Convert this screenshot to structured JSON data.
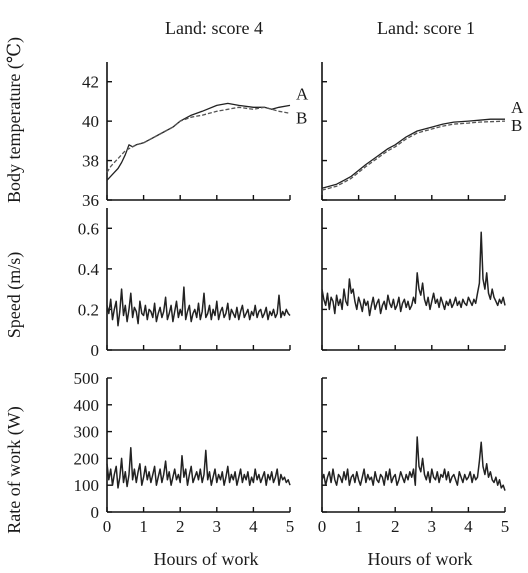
{
  "chart_data": [
    {
      "type": "line",
      "title": "Land: score 4",
      "xlabel": "",
      "ylabel": "Body temperature (℃)",
      "xlim": [
        0,
        5
      ],
      "ylim": [
        36,
        43
      ],
      "yticks": [
        "36",
        "38",
        "40",
        "42"
      ],
      "series": [
        {
          "name": "A",
          "x": [
            0,
            0.1,
            0.2,
            0.3,
            0.4,
            0.5,
            0.6,
            0.7,
            0.8,
            1,
            1.2,
            1.5,
            1.8,
            2,
            2.3,
            2.6,
            3,
            3.3,
            3.6,
            4,
            4.3,
            4.5,
            4.7,
            5
          ],
          "values": [
            37,
            37.2,
            37.4,
            37.6,
            37.9,
            38.3,
            38.8,
            38.7,
            38.8,
            38.9,
            39.1,
            39.4,
            39.7,
            40,
            40.3,
            40.5,
            40.8,
            40.9,
            40.8,
            40.7,
            40.7,
            40.6,
            40.7,
            40.8
          ]
        },
        {
          "name": "B",
          "x": [
            0,
            0.1,
            0.2,
            0.3,
            0.4,
            0.5,
            0.6,
            0.7,
            0.8,
            1,
            1.2,
            1.5,
            1.8,
            2,
            2.3,
            2.6,
            3,
            3.3,
            3.6,
            4,
            4.3,
            4.5,
            4.7,
            5
          ],
          "values": [
            37.4,
            37.7,
            37.9,
            38.1,
            38.3,
            38.5,
            38.6,
            38.7,
            38.8,
            38.9,
            39.1,
            39.4,
            39.7,
            40,
            40.2,
            40.3,
            40.5,
            40.6,
            40.7,
            40.6,
            40.7,
            40.6,
            40.5,
            40.4
          ]
        }
      ]
    },
    {
      "type": "line",
      "title": "Land: score 1",
      "xlabel": "",
      "ylabel": "",
      "xlim": [
        0,
        5
      ],
      "ylim": [
        36,
        43
      ],
      "series": [
        {
          "name": "A",
          "x": [
            0,
            0.2,
            0.4,
            0.6,
            0.8,
            1,
            1.2,
            1.5,
            1.8,
            2,
            2.3,
            2.6,
            3,
            3.3,
            3.6,
            4,
            4.3,
            4.6,
            5
          ],
          "values": [
            36.6,
            36.7,
            36.8,
            37,
            37.2,
            37.5,
            37.8,
            38.2,
            38.6,
            38.8,
            39.2,
            39.5,
            39.7,
            39.85,
            39.95,
            40,
            40.05,
            40.1,
            40.1
          ]
        },
        {
          "name": "B",
          "x": [
            0,
            0.2,
            0.4,
            0.6,
            0.8,
            1,
            1.2,
            1.5,
            1.8,
            2,
            2.3,
            2.6,
            3,
            3.3,
            3.6,
            4,
            4.3,
            4.6,
            5
          ],
          "values": [
            36.5,
            36.6,
            36.7,
            36.9,
            37.1,
            37.4,
            37.7,
            38.1,
            38.5,
            38.7,
            39.1,
            39.4,
            39.6,
            39.75,
            39.85,
            39.9,
            39.95,
            39.97,
            40
          ]
        }
      ]
    },
    {
      "type": "line",
      "xlabel": "",
      "ylabel": "Speed (m/s)",
      "xlim": [
        0,
        5
      ],
      "ylim": [
        0,
        0.7
      ],
      "yticks": [
        "0",
        "0.2",
        "0.4",
        "0.6"
      ],
      "series": [
        {
          "x_start": 0,
          "x_step": 0.05,
          "values": [
            0.22,
            0.18,
            0.25,
            0.15,
            0.2,
            0.24,
            0.12,
            0.19,
            0.3,
            0.17,
            0.22,
            0.14,
            0.2,
            0.28,
            0.16,
            0.21,
            0.19,
            0.13,
            0.24,
            0.18,
            0.17,
            0.22,
            0.15,
            0.2,
            0.19,
            0.16,
            0.23,
            0.14,
            0.18,
            0.21,
            0.16,
            0.19,
            0.26,
            0.15,
            0.18,
            0.22,
            0.14,
            0.19,
            0.24,
            0.16,
            0.2,
            0.17,
            0.31,
            0.15,
            0.19,
            0.22,
            0.14,
            0.18,
            0.2,
            0.16,
            0.23,
            0.15,
            0.19,
            0.28,
            0.16,
            0.18,
            0.22,
            0.15,
            0.2,
            0.17,
            0.24,
            0.15,
            0.19,
            0.21,
            0.16,
            0.18,
            0.23,
            0.15,
            0.2,
            0.18,
            0.16,
            0.21,
            0.15,
            0.19,
            0.22,
            0.16,
            0.18,
            0.2,
            0.15,
            0.19,
            0.17,
            0.22,
            0.16,
            0.19,
            0.2,
            0.16,
            0.18,
            0.21,
            0.15,
            0.19,
            0.17,
            0.2,
            0.16,
            0.18,
            0.27,
            0.16,
            0.19,
            0.17,
            0.2,
            0.18,
            0.17
          ]
        }
      ]
    },
    {
      "type": "line",
      "xlabel": "",
      "ylabel": "",
      "xlim": [
        0,
        5
      ],
      "ylim": [
        0,
        0.7
      ],
      "series": [
        {
          "x_start": 0,
          "x_step": 0.05,
          "values": [
            0.3,
            0.25,
            0.22,
            0.28,
            0.2,
            0.26,
            0.24,
            0.18,
            0.27,
            0.22,
            0.25,
            0.2,
            0.3,
            0.24,
            0.22,
            0.35,
            0.28,
            0.3,
            0.24,
            0.2,
            0.26,
            0.23,
            0.19,
            0.25,
            0.22,
            0.24,
            0.17,
            0.22,
            0.26,
            0.2,
            0.23,
            0.25,
            0.18,
            0.22,
            0.24,
            0.2,
            0.27,
            0.23,
            0.21,
            0.25,
            0.2,
            0.22,
            0.26,
            0.19,
            0.23,
            0.25,
            0.21,
            0.24,
            0.2,
            0.22,
            0.26,
            0.23,
            0.38,
            0.3,
            0.27,
            0.33,
            0.25,
            0.22,
            0.26,
            0.2,
            0.24,
            0.28,
            0.23,
            0.25,
            0.21,
            0.26,
            0.23,
            0.2,
            0.24,
            0.22,
            0.25,
            0.21,
            0.23,
            0.26,
            0.22,
            0.24,
            0.21,
            0.25,
            0.23,
            0.22,
            0.26,
            0.24,
            0.22,
            0.25,
            0.23,
            0.28,
            0.33,
            0.58,
            0.35,
            0.3,
            0.38,
            0.28,
            0.25,
            0.3,
            0.26,
            0.24,
            0.22,
            0.25,
            0.23,
            0.26,
            0.22
          ]
        }
      ]
    },
    {
      "type": "line",
      "xlabel": "Hours of work",
      "ylabel": "Rate of work (W)",
      "xlim": [
        0,
        5
      ],
      "ylim": [
        0,
        500
      ],
      "xticks": [
        "0",
        "1",
        "2",
        "3",
        "4",
        "5"
      ],
      "yticks": [
        "0",
        "100",
        "200",
        "300",
        "400",
        "500"
      ],
      "series": [
        {
          "x_start": 0,
          "x_step": 0.05,
          "values": [
            180,
            120,
            160,
            100,
            140,
            170,
            90,
            130,
            200,
            110,
            150,
            95,
            140,
            240,
            120,
            160,
            110,
            150,
            180,
            100,
            130,
            170,
            120,
            150,
            110,
            140,
            170,
            100,
            130,
            160,
            110,
            140,
            190,
            120,
            150,
            100,
            130,
            160,
            120,
            140,
            110,
            210,
            130,
            160,
            100,
            140,
            170,
            110,
            130,
            150,
            120,
            160,
            110,
            140,
            230,
            120,
            150,
            100,
            130,
            160,
            110,
            140,
            120,
            150,
            100,
            130,
            170,
            110,
            140,
            120,
            150,
            100,
            130,
            160,
            110,
            140,
            120,
            150,
            100,
            130,
            110,
            160,
            120,
            140,
            110,
            130,
            150,
            100,
            140,
            120,
            150,
            110,
            130,
            160,
            100,
            140,
            120,
            130,
            110,
            120,
            100
          ]
        }
      ]
    },
    {
      "type": "line",
      "xlabel": "Hours of work",
      "ylabel": "",
      "xlim": [
        0,
        5
      ],
      "ylim": [
        0,
        500
      ],
      "xticks": [
        "0",
        "1",
        "2",
        "3",
        "4",
        "5"
      ],
      "series": [
        {
          "x_start": 0,
          "x_step": 0.05,
          "values": [
            120,
            140,
            100,
            130,
            150,
            110,
            160,
            120,
            100,
            140,
            130,
            110,
            150,
            120,
            160,
            100,
            130,
            140,
            110,
            150,
            120,
            100,
            130,
            160,
            110,
            140,
            120,
            130,
            100,
            150,
            120,
            110,
            140,
            130,
            100,
            150,
            120,
            160,
            110,
            130,
            140,
            100,
            120,
            150,
            130,
            110,
            140,
            120,
            150,
            130,
            160,
            100,
            280,
            170,
            150,
            200,
            140,
            120,
            150,
            110,
            160,
            130,
            120,
            150,
            110,
            140,
            130,
            160,
            120,
            150,
            110,
            130,
            140,
            120,
            100,
            150,
            130,
            110,
            140,
            120,
            130,
            150,
            110,
            140,
            120,
            130,
            190,
            260,
            170,
            140,
            180,
            130,
            150,
            120,
            110,
            130,
            100,
            120,
            90,
            100,
            80
          ]
        }
      ]
    }
  ],
  "labels": {
    "col1_title": "Land: score 4",
    "col2_title": "Land: score 1",
    "ylabel_temp": "Body temperature (℃)",
    "ylabel_speed": "Speed (m/s)",
    "ylabel_work": "Rate of work (W)",
    "xlabel": "Hours of work"
  }
}
